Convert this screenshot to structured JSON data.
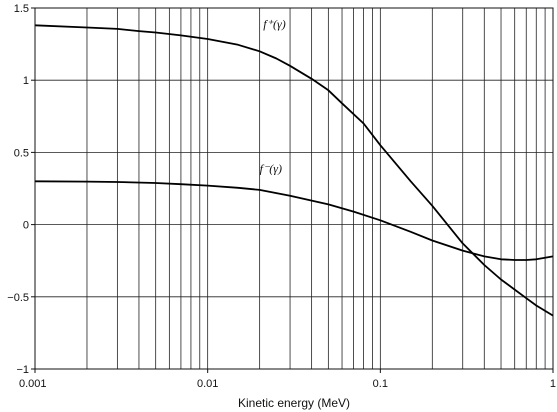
{
  "chart_data": {
    "type": "line",
    "title": "",
    "xlabel": "Kinetic energy (MeV)",
    "ylabel": "",
    "x_scale": "log",
    "xlim": [
      0.001,
      1
    ],
    "ylim": [
      -1,
      1.5
    ],
    "grid": true,
    "legend": "none",
    "x_tick_labels": [
      {
        "value": 0.001,
        "label": "0.001"
      },
      {
        "value": 0.01,
        "label": "0.01"
      },
      {
        "value": 0.1,
        "label": "0.1"
      },
      {
        "value": 1,
        "label": "1"
      }
    ],
    "y_tick_labels": [
      {
        "value": 1.5,
        "label": "1.5"
      },
      {
        "value": 1,
        "label": "1"
      },
      {
        "value": 0.5,
        "label": "0.5"
      },
      {
        "value": 0,
        "label": "0"
      },
      {
        "value": -0.5,
        "label": "−0.5"
      },
      {
        "value": -1,
        "label": "−1"
      }
    ],
    "series": [
      {
        "name": "f⁺(γ)",
        "label_at": {
          "x": 0.021,
          "y": 1.36
        },
        "points": [
          [
            0.001,
            1.38
          ],
          [
            0.002,
            1.365
          ],
          [
            0.003,
            1.355
          ],
          [
            0.004,
            1.34
          ],
          [
            0.005,
            1.33
          ],
          [
            0.007,
            1.31
          ],
          [
            0.01,
            1.285
          ],
          [
            0.015,
            1.245
          ],
          [
            0.02,
            1.2
          ],
          [
            0.025,
            1.15
          ],
          [
            0.03,
            1.1
          ],
          [
            0.04,
            1.01
          ],
          [
            0.05,
            0.93
          ],
          [
            0.06,
            0.84
          ],
          [
            0.08,
            0.7
          ],
          [
            0.1,
            0.55
          ],
          [
            0.15,
            0.3
          ],
          [
            0.2,
            0.13
          ],
          [
            0.3,
            -0.13
          ],
          [
            0.4,
            -0.28
          ],
          [
            0.5,
            -0.38
          ],
          [
            0.6,
            -0.45
          ],
          [
            0.7,
            -0.51
          ],
          [
            0.8,
            -0.56
          ],
          [
            1,
            -0.63
          ]
        ]
      },
      {
        "name": "f⁻(γ)",
        "label_at": {
          "x": 0.02,
          "y": 0.36
        },
        "points": [
          [
            0.001,
            0.3
          ],
          [
            0.002,
            0.298
          ],
          [
            0.003,
            0.295
          ],
          [
            0.005,
            0.288
          ],
          [
            0.007,
            0.28
          ],
          [
            0.01,
            0.27
          ],
          [
            0.015,
            0.255
          ],
          [
            0.02,
            0.24
          ],
          [
            0.03,
            0.2
          ],
          [
            0.05,
            0.14
          ],
          [
            0.07,
            0.09
          ],
          [
            0.1,
            0.03
          ],
          [
            0.15,
            -0.05
          ],
          [
            0.2,
            -0.11
          ],
          [
            0.3,
            -0.18
          ],
          [
            0.4,
            -0.22
          ],
          [
            0.5,
            -0.24
          ],
          [
            0.6,
            -0.245
          ],
          [
            0.7,
            -0.245
          ],
          [
            0.8,
            -0.24
          ],
          [
            1,
            -0.22
          ]
        ]
      }
    ]
  }
}
